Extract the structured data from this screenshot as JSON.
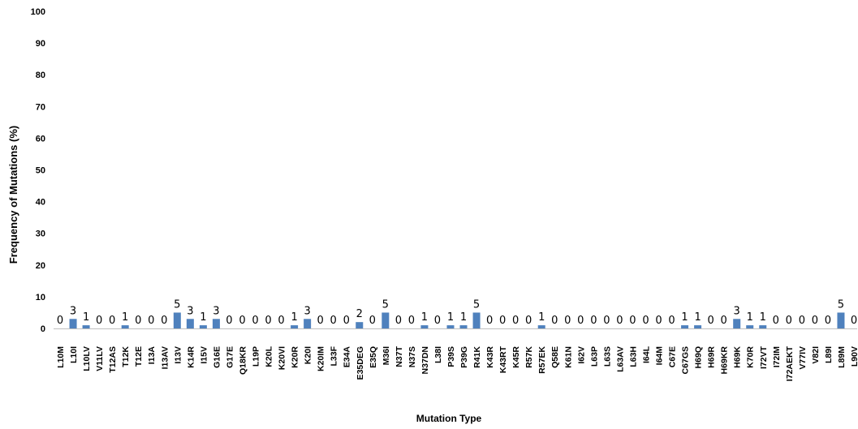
{
  "chart_data": {
    "type": "bar",
    "title": "",
    "xlabel": "Mutation Type",
    "ylabel": "Frequency of Mutations (%)",
    "ylim": [
      0,
      100
    ],
    "yticks": [
      0,
      10,
      20,
      30,
      40,
      50,
      60,
      70,
      80,
      90,
      100
    ],
    "grid": false,
    "legend": "none",
    "bar_color": "#4f81bd",
    "categories": [
      "L10M",
      "L10I",
      "L10LV",
      "V11LV",
      "T12AS",
      "T12K",
      "T12E",
      "I13A",
      "I13AV",
      "I13V",
      "K14R",
      "I15V",
      "G16E",
      "G17E",
      "Q18KR",
      "L19P",
      "K20L",
      "K20VI",
      "K20R",
      "K20I",
      "K20IM",
      "L33F",
      "E34A",
      "E35DEG",
      "E35Q",
      "M36I",
      "N37T",
      "N37S",
      "N37DN",
      "L38I",
      "P39S",
      "P39G",
      "R41K",
      "K43R",
      "K43RT",
      "K45R",
      "R57K",
      "R57EK",
      "Q58E",
      "K61N",
      "I62V",
      "L63P",
      "L63S",
      "L63AV",
      "L63H",
      "I64L",
      "I64M",
      "C67E",
      "C67GS",
      "H69Q",
      "H69R",
      "H69KR",
      "H69K",
      "K70R",
      "I72VT",
      "I72IM",
      "I72AEKT",
      "V77IV",
      "V82I",
      "L89I",
      "L89M",
      "L90V"
    ],
    "values": [
      0,
      3,
      1,
      0,
      0,
      1,
      0,
      0,
      0,
      5,
      3,
      1,
      3,
      0,
      0,
      0,
      0,
      0,
      1,
      3,
      0,
      0,
      0,
      2,
      0,
      5,
      0,
      0,
      1,
      0,
      1,
      1,
      5,
      0,
      0,
      0,
      0,
      1,
      0,
      0,
      0,
      0,
      0,
      0,
      0,
      0,
      0,
      0,
      1,
      1,
      0,
      0,
      3,
      1,
      1,
      0,
      0,
      0,
      0,
      0,
      5,
      0
    ],
    "data_labels": [
      "0",
      "3",
      "1",
      "0",
      "0",
      "1",
      "0",
      "0",
      "0",
      "5",
      "3",
      "1",
      "3",
      "0",
      "0",
      "0",
      "0",
      "0",
      "1",
      "3",
      "0",
      "0",
      "0",
      "2",
      "0",
      "5",
      "0",
      "0",
      "1",
      "0",
      "1",
      "1",
      "5",
      "0",
      "0",
      "0",
      "0",
      "1",
      "0",
      "0",
      "0",
      "0",
      "0",
      "0",
      "0",
      "0",
      "0",
      "0",
      "1",
      "1",
      "0",
      "0",
      "3",
      "1",
      "1",
      "0",
      "0",
      "0",
      "0",
      "0",
      "5",
      "0"
    ],
    "bar_values": [
      0,
      3,
      1,
      0,
      0,
      1,
      0,
      0,
      0,
      5,
      3,
      1,
      3,
      0,
      0,
      0,
      0,
      0,
      1,
      3,
      0,
      0,
      0,
      2,
      0,
      5,
      0,
      0,
      1,
      0,
      1,
      1,
      5,
      0,
      0,
      0,
      0,
      1,
      0,
      0,
      0,
      0,
      0,
      0,
      0,
      0,
      0,
      0,
      1,
      1,
      0,
      0,
      3,
      1,
      1,
      0,
      0,
      0,
      0,
      0,
      5,
      0
    ],
    "data_labels_shown": [
      "0",
      "3",
      "1",
      "0",
      "0",
      "1",
      "0",
      "0",
      "0",
      "5",
      "3",
      "1",
      "3",
      "0",
      "0",
      "0",
      "0",
      "0",
      "1",
      "3",
      "0",
      "0",
      "0",
      "2",
      "0",
      "5",
      "0",
      "0",
      "1",
      "0",
      "1",
      "1",
      "5",
      "0",
      "0",
      "0",
      "0",
      "1",
      "0",
      "0",
      "0",
      "0",
      "0",
      "0",
      "0",
      "0",
      "0",
      "0",
      "1",
      "1",
      "0",
      "0",
      "3",
      "1",
      "1",
      "0",
      "0",
      "0",
      "0",
      "0",
      "5",
      "0"
    ]
  }
}
